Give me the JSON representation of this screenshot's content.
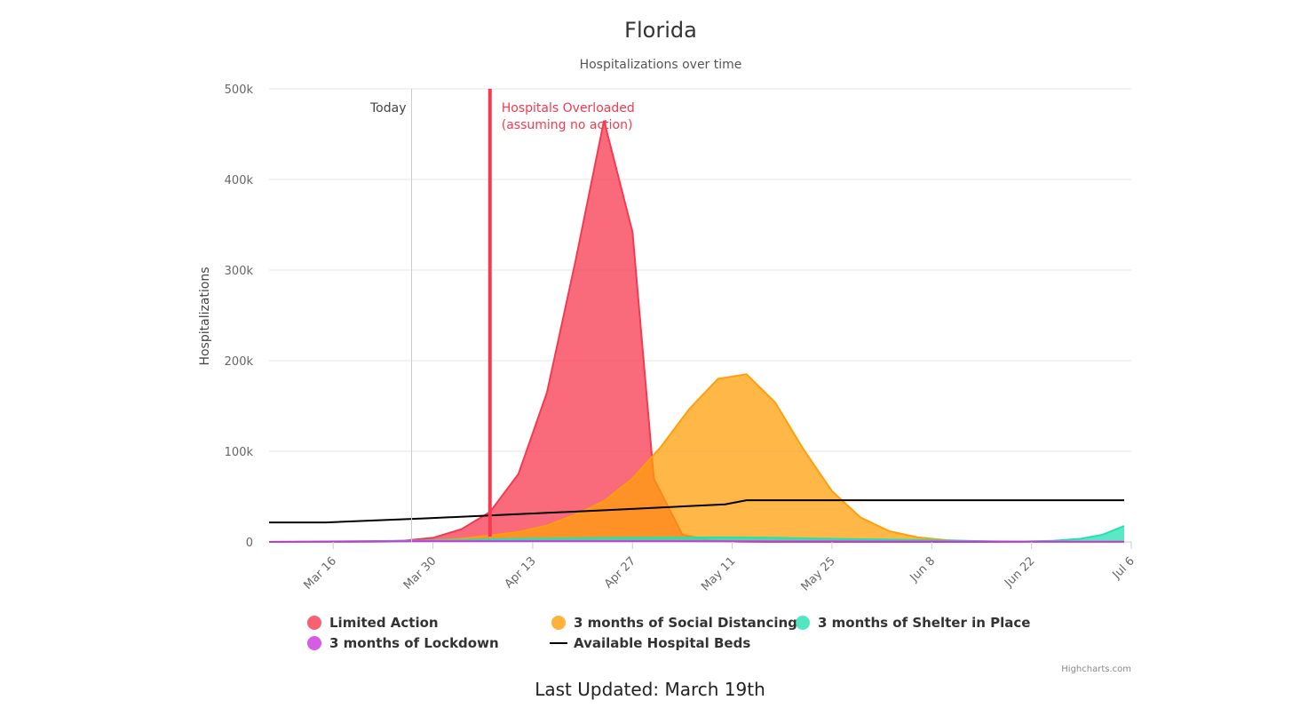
{
  "chart_data": {
    "type": "area",
    "title": "Florida",
    "subtitle": "Hospitalizations over time",
    "xlabel": "",
    "ylabel": "Hospitalizations",
    "x_tick_labels": [
      "Mar 16",
      "Mar 30",
      "Apr 13",
      "Apr 27",
      "May 11",
      "May 25",
      "Jun 8",
      "Jun 22",
      "Jul 6"
    ],
    "x_ticks_day_of_year": [
      76,
      90,
      104,
      118,
      132,
      146,
      160,
      174,
      188
    ],
    "y_tick_labels": [
      "0",
      "100k",
      "200k",
      "300k",
      "400k",
      "500k"
    ],
    "ylim": [
      0,
      500000
    ],
    "xlim_day_of_year": [
      67,
      188
    ],
    "grid": true,
    "legend_position": "bottom",
    "series": [
      {
        "name": "Limited Action",
        "kind": "area",
        "color": "#f7394f",
        "points": [
          [
            "Mar 8",
            0
          ],
          [
            "Mar 12",
            0
          ],
          [
            "Mar 16",
            0
          ],
          [
            "Mar 20",
            100
          ],
          [
            "Mar 24",
            500
          ],
          [
            "Mar 27",
            1500
          ],
          [
            "Mar 31",
            4500
          ],
          [
            "Apr 4",
            14000
          ],
          [
            "Apr 8",
            33000
          ],
          [
            "Apr 12",
            75000
          ],
          [
            "Apr 16",
            165000
          ],
          [
            "Apr 20",
            310000
          ],
          [
            "Apr 24",
            465000
          ],
          [
            "Apr 28",
            342000
          ],
          [
            "May 1",
            70000
          ],
          [
            "May 5",
            8000
          ],
          [
            "May 9",
            1500
          ],
          [
            "May 13",
            300
          ],
          [
            "May 17",
            0
          ],
          [
            "Jul 6",
            0
          ]
        ]
      },
      {
        "name": "3 months of Social Distancing",
        "kind": "area",
        "color": "#ff9f0a",
        "points": [
          [
            "Mar 8",
            0
          ],
          [
            "Mar 16",
            0
          ],
          [
            "Mar 24",
            300
          ],
          [
            "Mar 31",
            1500
          ],
          [
            "Apr 4",
            3500
          ],
          [
            "Apr 8",
            7000
          ],
          [
            "Apr 12",
            11000
          ],
          [
            "Apr 16",
            18000
          ],
          [
            "Apr 20",
            30000
          ],
          [
            "Apr 24",
            45000
          ],
          [
            "Apr 28",
            70000
          ],
          [
            "May 2",
            105000
          ],
          [
            "May 6",
            147000
          ],
          [
            "May 10",
            180000
          ],
          [
            "May 14",
            185000
          ],
          [
            "May 18",
            154000
          ],
          [
            "May 22",
            102000
          ],
          [
            "May 26",
            56000
          ],
          [
            "May 30",
            27000
          ],
          [
            "Jun 3",
            12000
          ],
          [
            "Jun 7",
            5000
          ],
          [
            "Jun 11",
            2000
          ],
          [
            "Jun 15",
            700
          ],
          [
            "Jun 19",
            200
          ],
          [
            "Jun 23",
            0
          ],
          [
            "Jul 6",
            0
          ]
        ]
      },
      {
        "name": "3 months of Shelter in Place",
        "kind": "area",
        "color": "#25e0b0",
        "points": [
          [
            "Mar 8",
            0
          ],
          [
            "Mar 30",
            1500
          ],
          [
            "Apr 13",
            3500
          ],
          [
            "Apr 27",
            4500
          ],
          [
            "May 11",
            5000
          ],
          [
            "May 18",
            4500
          ],
          [
            "May 25",
            3500
          ],
          [
            "Jun 8",
            2000
          ],
          [
            "Jun 18",
            600
          ],
          [
            "Jun 22",
            500
          ],
          [
            "Jun 26",
            1200
          ],
          [
            "Jun 30",
            3500
          ],
          [
            "Jul 3",
            8000
          ],
          [
            "Jul 6",
            17500
          ]
        ]
      },
      {
        "name": "3 months of Lockdown",
        "kind": "area",
        "color": "#cc33dd",
        "points": [
          [
            "Mar 8",
            0
          ],
          [
            "Mar 30",
            800
          ],
          [
            "Apr 27",
            800
          ],
          [
            "May 25",
            500
          ],
          [
            "Jun 22",
            200
          ],
          [
            "Jul 6",
            300
          ]
        ]
      },
      {
        "name": "Available Hospital Beds",
        "kind": "line",
        "color": "#000000",
        "points": [
          [
            "Mar 8",
            21500
          ],
          [
            "Mar 16",
            21500
          ],
          [
            "Mar 30",
            26000
          ],
          [
            "Apr 13",
            31000
          ],
          [
            "Apr 27",
            36000
          ],
          [
            "May 11",
            41500
          ],
          [
            "May 14",
            46000
          ],
          [
            "May 25",
            46000
          ],
          [
            "Jun 8",
            46000
          ],
          [
            "Jun 22",
            46000
          ],
          [
            "Jul 6",
            46000
          ]
        ]
      }
    ],
    "plot_lines": [
      {
        "label": "Today",
        "date": "Mar 28",
        "color": "#cccccc"
      },
      {
        "label": "Hospitals Overloaded\n(assuming no action)",
        "date": "Apr 8",
        "color": "#f7394f"
      }
    ],
    "credits": "Highcharts.com"
  },
  "footer": {
    "last_updated": "Last Updated: March 19th"
  }
}
